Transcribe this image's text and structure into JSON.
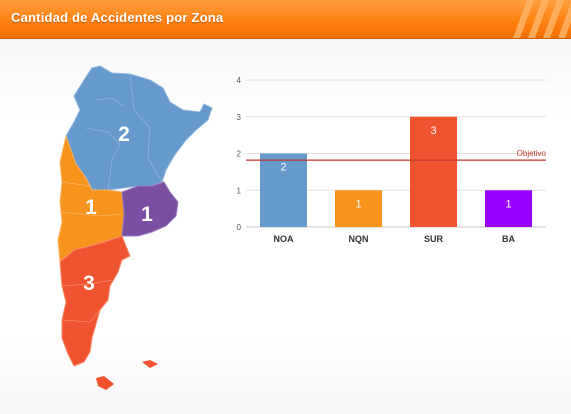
{
  "header": {
    "title": "Cantidad de Accidentes por Zona"
  },
  "map": {
    "zones": [
      {
        "zone": "NOA",
        "label": "2",
        "color": "#6699cc"
      },
      {
        "zone": "NQN",
        "label": "1",
        "color": "#f7941d"
      },
      {
        "zone": "BA",
        "label": "1",
        "color": "#7a4ea0"
      },
      {
        "zone": "SUR",
        "label": "3",
        "color": "#f0532f"
      }
    ]
  },
  "chart_data": {
    "type": "bar",
    "categories": [
      "NOA",
      "NQN",
      "SUR",
      "BA"
    ],
    "values": [
      2,
      1,
      3,
      1
    ],
    "value_labels": [
      "2",
      "1",
      "3",
      "1"
    ],
    "colors": [
      "#6699cc",
      "#f7941d",
      "#f0532f",
      "#9900ff"
    ],
    "ylim": [
      0,
      4
    ],
    "yticks": [
      "0",
      "1",
      "2",
      "3",
      "4"
    ],
    "grid": true,
    "reference_line": {
      "label": "Objetivo",
      "value": 1.82,
      "color": "#c0392b"
    }
  }
}
